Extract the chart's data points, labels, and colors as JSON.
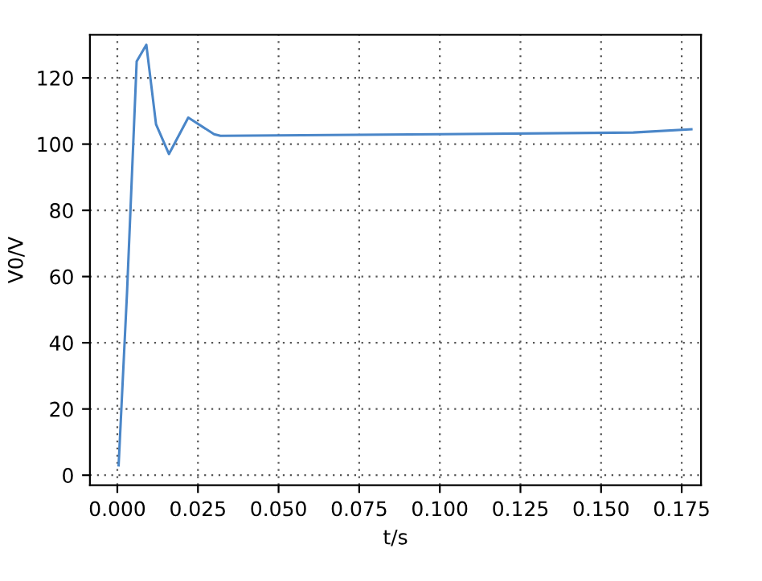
{
  "chart_data": {
    "type": "line",
    "xlabel": "t/s",
    "ylabel": "V0/V",
    "series": [
      {
        "color": "#4a86c8",
        "x": [
          0.0004,
          0.003,
          0.006,
          0.009,
          0.012,
          0.016,
          0.022,
          0.03,
          0.032,
          0.1,
          0.16,
          0.178
        ],
        "values": [
          3,
          55,
          125,
          130,
          106,
          97,
          108,
          103,
          102.5,
          103,
          103.5,
          104.5
        ]
      }
    ],
    "xlim": [
      -0.0085,
      0.181
    ],
    "ylim": [
      -3,
      133
    ],
    "xticks": [
      {
        "value": 0,
        "label": "0.000"
      },
      {
        "value": 0.025,
        "label": "0.025"
      },
      {
        "value": 0.05,
        "label": "0.050"
      },
      {
        "value": 0.075,
        "label": "0.075"
      },
      {
        "value": 0.1,
        "label": "0.100"
      },
      {
        "value": 0.125,
        "label": "0.125"
      },
      {
        "value": 0.15,
        "label": "0.150"
      },
      {
        "value": 0.175,
        "label": "0.175"
      }
    ],
    "yticks": [
      0,
      20,
      40,
      60,
      80,
      100,
      120
    ],
    "grid": true,
    "line_style": "solid"
  }
}
